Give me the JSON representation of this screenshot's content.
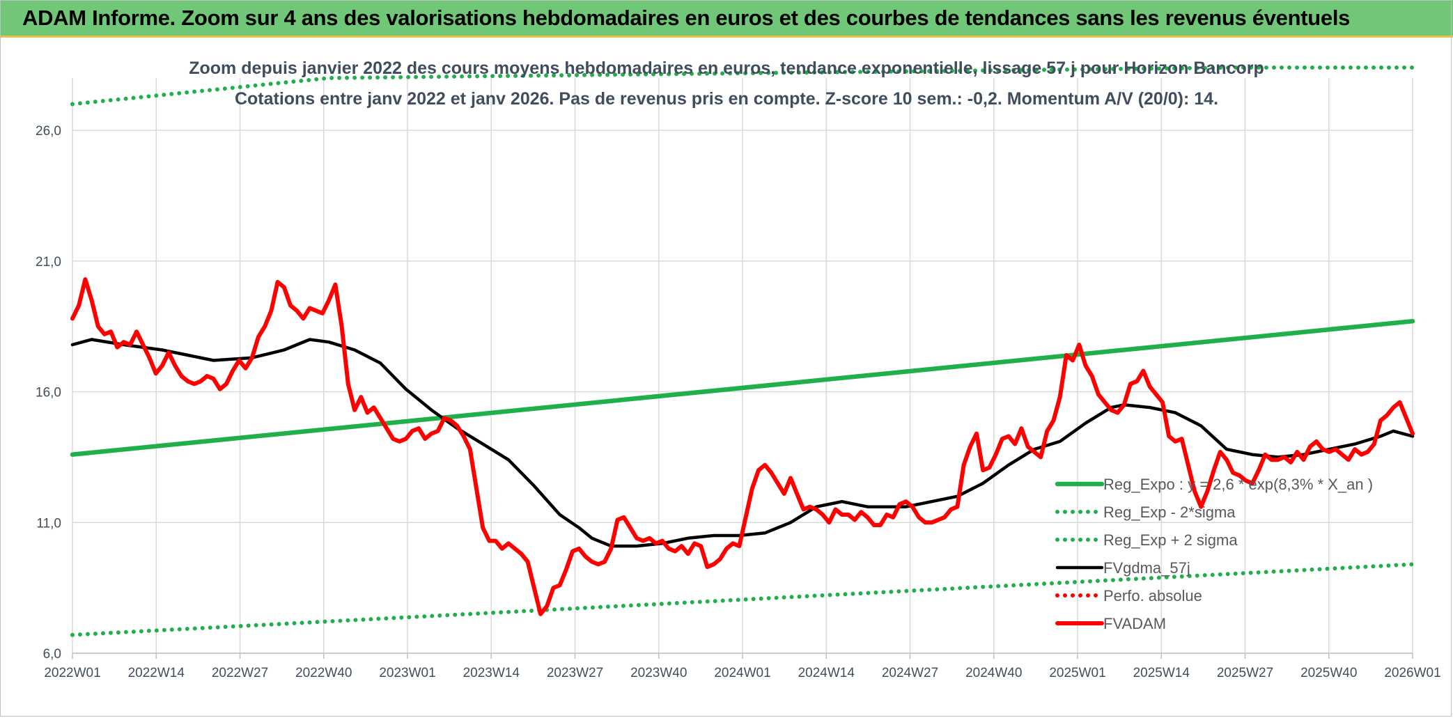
{
  "header": {
    "title": "ADAM Informe. Zoom sur 4 ans des valorisations hebdomadaires en euros et des courbes de tendances sans les revenus éventuels"
  },
  "chart_data": {
    "type": "line",
    "title": "Zoom depuis janvier 2022 des cours moyens hebdomadaires en euros, tendance exponentielle, lissage 57 j pour Horizon Bancorp",
    "subtitle": "Cotations entre janv 2022 et janv 2026. Pas de revenus pris en compte. Z-score 10 sem.: -0,2. Momentum A/V (20/0): 14.",
    "xlabel": "",
    "ylabel": "",
    "ylim": [
      6.0,
      28.0
    ],
    "yticks": [
      6.0,
      11.0,
      16.0,
      21.0,
      26.0
    ],
    "ytick_labels": [
      "6,0",
      "11,0",
      "16,0",
      "21,0",
      "26,0"
    ],
    "xticks": [
      "2022W01",
      "2022W14",
      "2022W27",
      "2022W40",
      "2023W01",
      "2023W14",
      "2023W27",
      "2023W40",
      "2024W01",
      "2024W14",
      "2024W27",
      "2024W40",
      "2025W01",
      "2025W14",
      "2025W27",
      "2025W40",
      "2026W01"
    ],
    "x_range_weeks": [
      0,
      209
    ],
    "grid": true,
    "legend_position": "right",
    "series": [
      {
        "name": "Reg_Expo : y = 2,6 * exp(8,3% * X_an )",
        "color": "#1fb04b",
        "style": "solid",
        "points": [
          [
            0,
            13.6
          ],
          [
            209,
            18.7
          ]
        ]
      },
      {
        "name": "Reg_Exp - 2*sigma",
        "color": "#1fb04b",
        "style": "dotted",
        "points": [
          [
            0,
            6.7
          ],
          [
            209,
            9.4
          ]
        ]
      },
      {
        "name": "Reg_Exp + 2 sigma",
        "color": "#1fb04b",
        "style": "dotted",
        "points": [
          [
            0,
            27.0
          ],
          [
            40,
            28.0
          ],
          [
            182,
            28.4
          ],
          [
            209,
            28.4
          ]
        ]
      },
      {
        "name": "FVgdma_57j",
        "color": "#000000",
        "style": "solid",
        "points": [
          [
            0,
            17.8
          ],
          [
            3,
            18.0
          ],
          [
            8,
            17.8
          ],
          [
            14,
            17.6
          ],
          [
            18,
            17.4
          ],
          [
            22,
            17.2
          ],
          [
            28,
            17.3
          ],
          [
            33,
            17.6
          ],
          [
            37,
            18.0
          ],
          [
            40,
            17.9
          ],
          [
            44,
            17.6
          ],
          [
            48,
            17.1
          ],
          [
            52,
            16.1
          ],
          [
            56,
            15.3
          ],
          [
            60,
            14.6
          ],
          [
            64,
            14.0
          ],
          [
            68,
            13.4
          ],
          [
            72,
            12.4
          ],
          [
            76,
            11.3
          ],
          [
            79,
            10.8
          ],
          [
            81,
            10.4
          ],
          [
            84,
            10.1
          ],
          [
            88,
            10.1
          ],
          [
            92,
            10.2
          ],
          [
            96,
            10.4
          ],
          [
            100,
            10.5
          ],
          [
            104,
            10.5
          ],
          [
            108,
            10.6
          ],
          [
            112,
            11.0
          ],
          [
            116,
            11.6
          ],
          [
            118,
            11.7
          ],
          [
            120,
            11.8
          ],
          [
            124,
            11.6
          ],
          [
            130,
            11.6
          ],
          [
            134,
            11.8
          ],
          [
            138,
            12.0
          ],
          [
            142,
            12.5
          ],
          [
            146,
            13.2
          ],
          [
            150,
            13.8
          ],
          [
            154,
            14.1
          ],
          [
            158,
            14.8
          ],
          [
            162,
            15.4
          ],
          [
            164,
            15.5
          ],
          [
            168,
            15.4
          ],
          [
            172,
            15.2
          ],
          [
            176,
            14.7
          ],
          [
            180,
            13.8
          ],
          [
            184,
            13.6
          ],
          [
            188,
            13.5
          ],
          [
            192,
            13.6
          ],
          [
            196,
            13.8
          ],
          [
            200,
            14.0
          ],
          [
            204,
            14.3
          ],
          [
            206,
            14.5
          ],
          [
            209,
            14.3
          ]
        ]
      },
      {
        "name": "Perfo. absolue",
        "color": "#ff0000",
        "style": "dotted",
        "points": []
      },
      {
        "name": "FVADAM",
        "color": "#ff0000",
        "style": "solid",
        "points": [
          [
            0,
            18.8
          ],
          [
            1,
            19.3
          ],
          [
            2,
            20.3
          ],
          [
            3,
            19.5
          ],
          [
            4,
            18.5
          ],
          [
            5,
            18.2
          ],
          [
            6,
            18.3
          ],
          [
            7,
            17.7
          ],
          [
            8,
            17.9
          ],
          [
            9,
            17.8
          ],
          [
            10,
            18.3
          ],
          [
            11,
            17.8
          ],
          [
            12,
            17.3
          ],
          [
            13,
            16.7
          ],
          [
            14,
            17.0
          ],
          [
            15,
            17.5
          ],
          [
            16,
            17.0
          ],
          [
            17,
            16.6
          ],
          [
            18,
            16.4
          ],
          [
            19,
            16.3
          ],
          [
            20,
            16.4
          ],
          [
            21,
            16.6
          ],
          [
            22,
            16.5
          ],
          [
            23,
            16.1
          ],
          [
            24,
            16.3
          ],
          [
            25,
            16.8
          ],
          [
            26,
            17.2
          ],
          [
            27,
            16.9
          ],
          [
            28,
            17.3
          ],
          [
            29,
            18.1
          ],
          [
            30,
            18.5
          ],
          [
            31,
            19.1
          ],
          [
            32,
            20.2
          ],
          [
            33,
            20.0
          ],
          [
            34,
            19.3
          ],
          [
            35,
            19.1
          ],
          [
            36,
            18.8
          ],
          [
            37,
            19.2
          ],
          [
            38,
            19.1
          ],
          [
            39,
            19.0
          ],
          [
            40,
            19.5
          ],
          [
            41,
            20.1
          ],
          [
            42,
            18.5
          ],
          [
            43,
            16.3
          ],
          [
            44,
            15.3
          ],
          [
            45,
            15.8
          ],
          [
            46,
            15.2
          ],
          [
            47,
            15.4
          ],
          [
            48,
            15.0
          ],
          [
            49,
            14.6
          ],
          [
            50,
            14.2
          ],
          [
            51,
            14.1
          ],
          [
            52,
            14.2
          ],
          [
            53,
            14.5
          ],
          [
            54,
            14.6
          ],
          [
            55,
            14.2
          ],
          [
            56,
            14.4
          ],
          [
            57,
            14.5
          ],
          [
            58,
            15.0
          ],
          [
            59,
            14.9
          ],
          [
            60,
            14.7
          ],
          [
            61,
            14.3
          ],
          [
            62,
            13.8
          ],
          [
            63,
            12.3
          ],
          [
            64,
            10.8
          ],
          [
            65,
            10.3
          ],
          [
            66,
            10.3
          ],
          [
            67,
            10.0
          ],
          [
            68,
            10.2
          ],
          [
            69,
            10.0
          ],
          [
            70,
            9.8
          ],
          [
            71,
            9.5
          ],
          [
            72,
            8.5
          ],
          [
            73,
            7.5
          ],
          [
            74,
            7.8
          ],
          [
            75,
            8.5
          ],
          [
            76,
            8.6
          ],
          [
            77,
            9.2
          ],
          [
            78,
            9.9
          ],
          [
            79,
            10.0
          ],
          [
            80,
            9.7
          ],
          [
            81,
            9.5
          ],
          [
            82,
            9.4
          ],
          [
            83,
            9.5
          ],
          [
            84,
            10.0
          ],
          [
            85,
            11.1
          ],
          [
            86,
            11.2
          ],
          [
            87,
            10.8
          ],
          [
            88,
            10.4
          ],
          [
            89,
            10.3
          ],
          [
            90,
            10.4
          ],
          [
            91,
            10.2
          ],
          [
            92,
            10.3
          ],
          [
            93,
            10.0
          ],
          [
            94,
            9.9
          ],
          [
            95,
            10.1
          ],
          [
            96,
            9.8
          ],
          [
            97,
            10.2
          ],
          [
            98,
            10.1
          ],
          [
            99,
            9.3
          ],
          [
            100,
            9.4
          ],
          [
            101,
            9.6
          ],
          [
            102,
            10.0
          ],
          [
            103,
            10.2
          ],
          [
            104,
            10.1
          ],
          [
            105,
            11.2
          ],
          [
            106,
            12.3
          ],
          [
            107,
            13.0
          ],
          [
            108,
            13.2
          ],
          [
            109,
            12.9
          ],
          [
            110,
            12.5
          ],
          [
            111,
            12.1
          ],
          [
            112,
            12.7
          ],
          [
            113,
            12.1
          ],
          [
            114,
            11.5
          ],
          [
            115,
            11.6
          ],
          [
            116,
            11.5
          ],
          [
            117,
            11.3
          ],
          [
            118,
            11.0
          ],
          [
            119,
            11.5
          ],
          [
            120,
            11.3
          ],
          [
            121,
            11.3
          ],
          [
            122,
            11.1
          ],
          [
            123,
            11.4
          ],
          [
            124,
            11.2
          ],
          [
            125,
            10.9
          ],
          [
            126,
            10.9
          ],
          [
            127,
            11.3
          ],
          [
            128,
            11.2
          ],
          [
            129,
            11.7
          ],
          [
            130,
            11.8
          ],
          [
            131,
            11.6
          ],
          [
            132,
            11.2
          ],
          [
            133,
            11.0
          ],
          [
            134,
            11.0
          ],
          [
            135,
            11.1
          ],
          [
            136,
            11.2
          ],
          [
            137,
            11.5
          ],
          [
            138,
            11.6
          ],
          [
            139,
            13.2
          ],
          [
            140,
            13.9
          ],
          [
            141,
            14.4
          ],
          [
            142,
            13.0
          ],
          [
            143,
            13.1
          ],
          [
            144,
            13.6
          ],
          [
            145,
            14.2
          ],
          [
            146,
            14.3
          ],
          [
            147,
            14.0
          ],
          [
            148,
            14.6
          ],
          [
            149,
            13.9
          ],
          [
            150,
            13.7
          ],
          [
            151,
            13.5
          ],
          [
            152,
            14.5
          ],
          [
            153,
            14.9
          ],
          [
            154,
            15.8
          ],
          [
            155,
            17.4
          ],
          [
            156,
            17.2
          ],
          [
            157,
            17.8
          ],
          [
            158,
            17.0
          ],
          [
            159,
            16.6
          ],
          [
            160,
            15.9
          ],
          [
            161,
            15.6
          ],
          [
            162,
            15.3
          ],
          [
            163,
            15.2
          ],
          [
            164,
            15.5
          ],
          [
            165,
            16.3
          ],
          [
            166,
            16.4
          ],
          [
            167,
            16.8
          ],
          [
            168,
            16.2
          ],
          [
            169,
            15.9
          ],
          [
            170,
            15.6
          ],
          [
            171,
            14.3
          ],
          [
            172,
            14.1
          ],
          [
            173,
            14.2
          ],
          [
            174,
            13.2
          ],
          [
            175,
            12.2
          ],
          [
            176,
            11.6
          ],
          [
            177,
            12.2
          ],
          [
            178,
            13.0
          ],
          [
            179,
            13.7
          ],
          [
            180,
            13.4
          ],
          [
            181,
            12.9
          ],
          [
            182,
            12.8
          ],
          [
            183,
            12.6
          ],
          [
            184,
            12.5
          ],
          [
            185,
            13.0
          ],
          [
            186,
            13.6
          ],
          [
            187,
            13.4
          ],
          [
            188,
            13.4
          ],
          [
            189,
            13.5
          ],
          [
            190,
            13.3
          ],
          [
            191,
            13.7
          ],
          [
            192,
            13.4
          ],
          [
            193,
            13.9
          ],
          [
            194,
            14.1
          ],
          [
            195,
            13.8
          ],
          [
            196,
            13.7
          ],
          [
            197,
            13.8
          ],
          [
            198,
            13.6
          ],
          [
            199,
            13.4
          ],
          [
            200,
            13.8
          ],
          [
            201,
            13.6
          ],
          [
            202,
            13.7
          ],
          [
            203,
            14.0
          ],
          [
            204,
            14.9
          ],
          [
            205,
            15.1
          ],
          [
            206,
            15.4
          ],
          [
            207,
            15.6
          ],
          [
            208,
            15.0
          ],
          [
            209,
            14.4
          ]
        ]
      }
    ]
  }
}
